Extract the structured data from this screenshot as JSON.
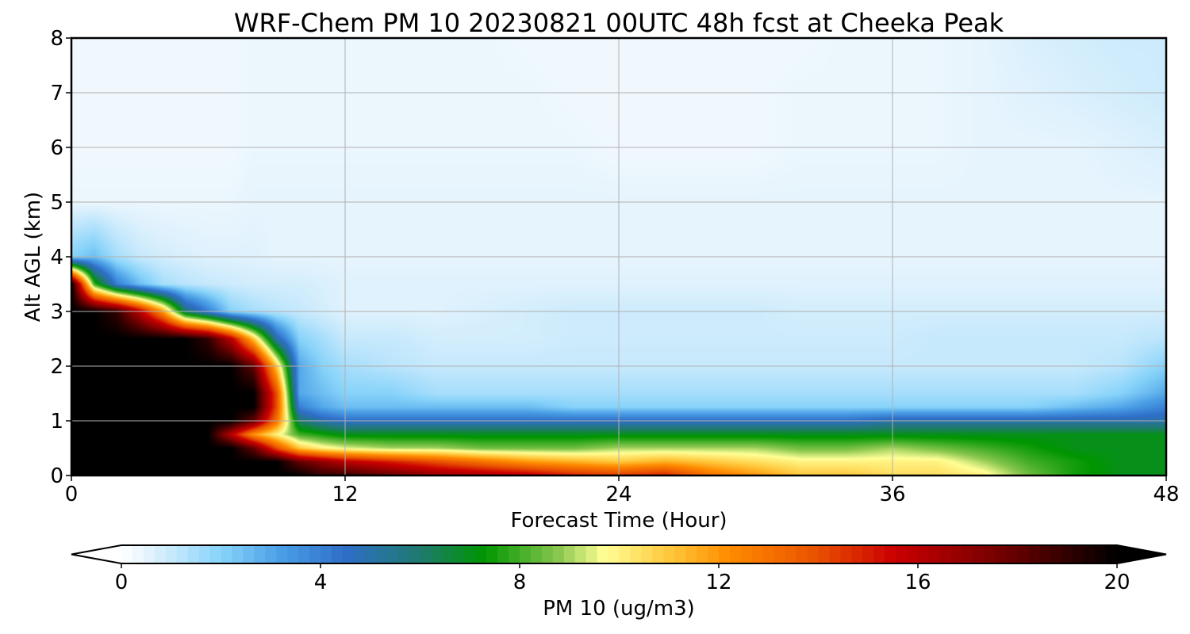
{
  "chart_data": {
    "type": "heatmap",
    "title": "WRF-Chem PM 10  20230821 00UTC 48h fcst at Cheeka Peak",
    "xlabel": "Forecast Time (Hour)",
    "ylabel": "Alt AGL (km)",
    "xlim": [
      0,
      48
    ],
    "ylim": [
      0,
      8
    ],
    "xticks": [
      0,
      12,
      24,
      36,
      48
    ],
    "yticks": [
      0,
      1,
      2,
      3,
      4,
      5,
      6,
      7,
      8
    ],
    "grid": true,
    "z_units": "ug/m3",
    "x": [
      0,
      1,
      2,
      3,
      4,
      5,
      6,
      7,
      8,
      9,
      10,
      11,
      12,
      14,
      16,
      18,
      20,
      22,
      24,
      26,
      28,
      30,
      32,
      34,
      36,
      38,
      40,
      42,
      44,
      46,
      48
    ],
    "y": [
      0,
      0.25,
      0.5,
      0.75,
      1,
      1.25,
      1.5,
      2,
      2.5,
      3,
      3.5,
      4,
      5,
      6,
      7,
      8
    ],
    "z": [
      [
        20,
        20,
        20,
        20,
        20,
        20,
        20,
        20,
        20,
        20,
        20,
        19,
        19,
        18,
        17,
        16.5,
        16,
        15,
        14.5,
        15,
        13,
        12,
        11,
        11,
        10.5,
        10.5,
        10,
        8.5,
        7.5,
        7,
        7
      ],
      [
        20,
        20,
        20,
        20,
        20,
        20,
        20,
        20,
        20,
        20,
        18,
        17,
        16,
        15,
        14,
        13,
        12,
        11.5,
        11,
        11.5,
        11,
        10.5,
        10,
        10,
        10,
        10,
        9,
        8,
        7.5,
        7,
        7
      ],
      [
        20,
        20,
        20,
        20,
        20,
        20,
        20,
        20,
        18,
        14,
        11,
        10,
        9.5,
        9,
        9,
        8.5,
        8.5,
        8.5,
        9,
        9,
        9,
        9,
        8.5,
        8.5,
        9,
        8.5,
        8,
        7.5,
        7,
        7,
        7
      ],
      [
        20,
        20,
        20,
        20,
        20,
        20,
        20,
        16,
        12,
        10,
        8,
        7.5,
        7,
        7,
        7,
        7,
        7,
        7,
        7,
        7,
        7,
        7,
        7,
        7,
        7,
        7,
        7,
        7,
        7,
        7,
        7
      ],
      [
        20,
        20,
        20,
        20,
        20,
        20,
        20,
        20,
        18,
        13,
        6,
        5,
        4.5,
        4.5,
        4.5,
        4.5,
        4.5,
        4.5,
        4.5,
        4.5,
        4.5,
        4.5,
        4.5,
        4.5,
        5,
        5,
        5,
        5,
        5,
        5,
        5
      ],
      [
        20,
        20,
        20,
        20,
        20,
        20,
        20,
        20,
        20,
        14,
        4,
        3,
        2.5,
        2.5,
        2.5,
        2.5,
        2.5,
        2,
        2,
        2,
        2,
        2,
        2,
        2,
        2,
        2,
        2,
        2,
        2.5,
        3,
        4
      ],
      [
        20,
        20,
        20,
        20,
        20,
        20,
        20,
        20,
        20,
        14,
        3,
        2.5,
        2,
        2,
        1.5,
        1.5,
        1.5,
        1.5,
        1.5,
        1.5,
        1.5,
        1.5,
        1.5,
        1.5,
        1.5,
        1.5,
        1.5,
        1.5,
        1.5,
        2,
        3
      ],
      [
        20,
        20,
        20,
        20,
        20,
        20,
        20,
        20,
        18,
        11,
        3,
        2,
        1.5,
        1.2,
        1,
        1,
        1,
        1,
        1,
        1,
        1,
        1,
        1,
        1,
        1,
        1,
        1,
        1,
        1,
        1.2,
        2
      ],
      [
        20,
        20,
        20,
        20,
        20,
        20,
        19,
        16,
        11,
        5,
        2,
        1.5,
        1,
        1,
        0.8,
        0.8,
        0.8,
        0.9,
        0.9,
        0.9,
        0.9,
        0.9,
        0.9,
        0.9,
        0.9,
        1,
        1,
        1,
        1,
        1,
        1.2
      ],
      [
        20,
        20,
        19,
        16,
        12,
        6,
        4,
        2,
        1.5,
        1.2,
        1,
        0.8,
        0.6,
        0.6,
        0.6,
        0.7,
        0.8,
        0.9,
        0.9,
        0.9,
        0.9,
        0.9,
        0.8,
        0.8,
        0.8,
        0.8,
        0.8,
        0.8,
        0.8,
        0.8,
        0.8
      ],
      [
        20,
        8,
        4,
        2.5,
        1.5,
        1.2,
        1,
        0.9,
        0.8,
        0.8,
        0.8,
        0.7,
        0.6,
        0.6,
        0.6,
        0.6,
        0.6,
        0.6,
        0.6,
        0.6,
        0.6,
        0.6,
        0.6,
        0.6,
        0.6,
        0.6,
        0.6,
        0.6,
        0.6,
        0.6,
        0.6
      ],
      [
        2,
        2.5,
        1.5,
        1,
        0.8,
        0.7,
        0.6,
        0.6,
        0.6,
        0.5,
        0.5,
        0.5,
        0.5,
        0.5,
        0.5,
        0.5,
        0.5,
        0.5,
        0.5,
        0.5,
        0.5,
        0.5,
        0.5,
        0.5,
        0.5,
        0.5,
        0.5,
        0.5,
        0.5,
        0.5,
        0.5
      ],
      [
        0.4,
        0.4,
        0.4,
        0.4,
        0.4,
        0.4,
        0.4,
        0.4,
        0.5,
        0.5,
        0.5,
        0.5,
        0.5,
        0.5,
        0.5,
        0.5,
        0.5,
        0.5,
        0.5,
        0.5,
        0.5,
        0.5,
        0.5,
        0.5,
        0.5,
        0.5,
        0.5,
        0.5,
        0.5,
        0.5,
        0.5
      ],
      [
        0.3,
        0.3,
        0.3,
        0.3,
        0.3,
        0.3,
        0.3,
        0.3,
        0.4,
        0.4,
        0.4,
        0.4,
        0.4,
        0.4,
        0.4,
        0.4,
        0.4,
        0.4,
        0.3,
        0.3,
        0.3,
        0.3,
        0.4,
        0.4,
        0.4,
        0.4,
        0.5,
        0.5,
        0.5,
        0.6,
        0.7
      ],
      [
        0.3,
        0.3,
        0.3,
        0.3,
        0.3,
        0.3,
        0.3,
        0.3,
        0.4,
        0.4,
        0.4,
        0.4,
        0.4,
        0.4,
        0.4,
        0.4,
        0.4,
        0.3,
        0.3,
        0.3,
        0.3,
        0.3,
        0.4,
        0.4,
        0.4,
        0.4,
        0.5,
        0.6,
        0.7,
        0.8,
        0.9
      ],
      [
        0.3,
        0.3,
        0.3,
        0.3,
        0.3,
        0.3,
        0.3,
        0.3,
        0.4,
        0.4,
        0.4,
        0.4,
        0.4,
        0.4,
        0.4,
        0.4,
        0.3,
        0.3,
        0.3,
        0.3,
        0.3,
        0.3,
        0.3,
        0.4,
        0.4,
        0.4,
        0.5,
        0.7,
        0.8,
        0.9,
        0.9
      ]
    ],
    "colorbar": {
      "label": "PM 10  (ug/m3)",
      "min": 0,
      "max": 20,
      "ticks": [
        0,
        4,
        8,
        12,
        16,
        20
      ],
      "extend": "both",
      "stops": [
        {
          "v": 0,
          "c": "#ffffff"
        },
        {
          "v": 0.5,
          "c": "#e6f4fd"
        },
        {
          "v": 2,
          "c": "#87d3fa"
        },
        {
          "v": 3.2,
          "c": "#4a9fe6"
        },
        {
          "v": 4.5,
          "c": "#2f6ec8"
        },
        {
          "v": 6,
          "c": "#1f7a6e"
        },
        {
          "v": 7.3,
          "c": "#009600"
        },
        {
          "v": 8.8,
          "c": "#8cc850"
        },
        {
          "v": 9.7,
          "c": "#ffff96"
        },
        {
          "v": 11,
          "c": "#ffc83c"
        },
        {
          "v": 12.2,
          "c": "#ff8c00"
        },
        {
          "v": 14,
          "c": "#e85000"
        },
        {
          "v": 15.5,
          "c": "#cc0000"
        },
        {
          "v": 17.5,
          "c": "#7a0000"
        },
        {
          "v": 20,
          "c": "#000000"
        }
      ]
    }
  }
}
